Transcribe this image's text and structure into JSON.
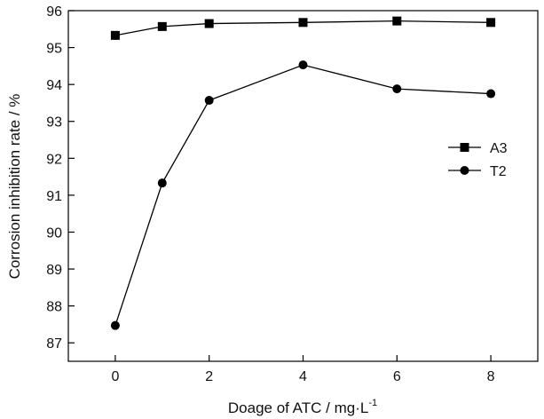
{
  "chart_data": {
    "type": "line",
    "xlabel": "Doage of ATC / mg·L",
    "xlabel_sup": "-1",
    "ylabel": "Corrosion inhibition rate / %",
    "xlim": [
      -1,
      9
    ],
    "ylim": [
      86.5,
      96
    ],
    "x_ticks": [
      0,
      2,
      4,
      6,
      8
    ],
    "y_ticks": [
      87,
      88,
      89,
      90,
      91,
      92,
      93,
      94,
      95,
      96
    ],
    "x_tick_labels": [
      "0",
      "2",
      "4",
      "6",
      "8"
    ],
    "y_tick_labels": [
      "87",
      "88",
      "89",
      "90",
      "91",
      "92",
      "93",
      "94",
      "95",
      "96"
    ],
    "legend_position": "right",
    "grid": false,
    "series": [
      {
        "name": "A3",
        "marker": "square",
        "x": [
          0,
          1,
          2,
          4,
          6,
          8
        ],
        "values": [
          95.33,
          95.57,
          95.65,
          95.68,
          95.72,
          95.68
        ]
      },
      {
        "name": "T2",
        "marker": "circle",
        "x": [
          0,
          1,
          2,
          4,
          6,
          8
        ],
        "values": [
          87.47,
          91.33,
          93.57,
          94.53,
          93.88,
          93.75
        ]
      }
    ]
  }
}
